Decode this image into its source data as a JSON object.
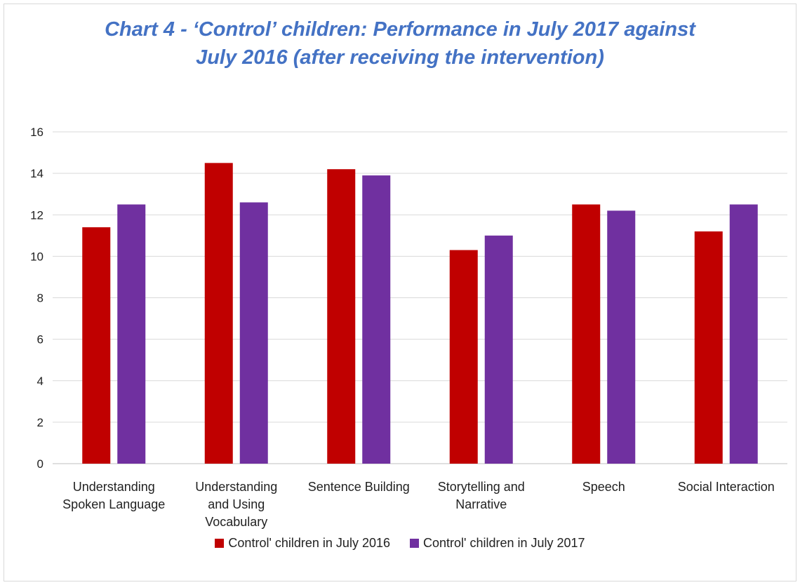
{
  "chart_data": {
    "type": "bar",
    "title": "Chart 4 - ‘Control’ children: Performance in July 2017 against July 2016 (after receiving the intervention)",
    "title_lines": [
      "Chart 4 - ‘Control’ children: Performance in July 2017 against",
      "July 2016 (after receiving the intervention)"
    ],
    "categories": [
      [
        "Understanding",
        "Spoken Language"
      ],
      [
        "Understanding",
        "and Using",
        "Vocabulary"
      ],
      [
        "Sentence Building"
      ],
      [
        "Storytelling and",
        "Narrative"
      ],
      [
        "Speech"
      ],
      [
        "Social Interaction"
      ]
    ],
    "series": [
      {
        "name": "Control' children in July 2016",
        "color": "#c00000",
        "values": [
          11.4,
          14.5,
          14.2,
          10.3,
          12.5,
          11.2
        ]
      },
      {
        "name": "Control' children in July 2017",
        "color": "#7030a0",
        "values": [
          12.5,
          12.6,
          13.9,
          11.0,
          12.2,
          12.5
        ]
      }
    ],
    "ylim": [
      0,
      16
    ],
    "yticks": [
      0,
      2,
      4,
      6,
      8,
      10,
      12,
      14,
      16
    ],
    "grid": true,
    "legend_position": "bottom"
  }
}
